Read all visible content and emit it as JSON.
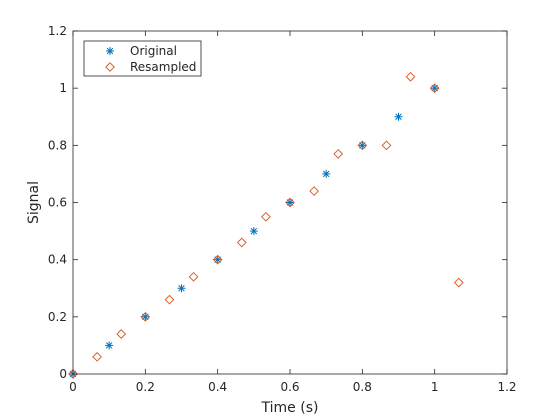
{
  "chart_data": {
    "type": "scatter",
    "xlabel": "Time (s)",
    "ylabel": "Signal",
    "xlim": [
      0,
      1.2
    ],
    "ylim": [
      0,
      1.2
    ],
    "xticks": [
      0,
      0.2,
      0.4,
      0.6,
      0.8,
      1,
      1.2
    ],
    "yticks": [
      0,
      0.2,
      0.4,
      0.6,
      0.8,
      1,
      1.2
    ],
    "xtick_labels": [
      "0",
      "0.2",
      "0.4",
      "0.6",
      "0.8",
      "1",
      "1.2"
    ],
    "ytick_labels": [
      "0",
      "0.2",
      "0.4",
      "0.6",
      "0.8",
      "1",
      "1.2"
    ],
    "grid": false,
    "legend_position": "top-left",
    "series": [
      {
        "name": "Original",
        "marker": "asterisk",
        "color": "#0072BD",
        "x": [
          0,
          0.1,
          0.2,
          0.3,
          0.4,
          0.5,
          0.6,
          0.7,
          0.8,
          0.9,
          1.0
        ],
        "y": [
          0,
          0.1,
          0.2,
          0.3,
          0.4,
          0.5,
          0.6,
          0.7,
          0.8,
          0.9,
          1.0
        ]
      },
      {
        "name": "Resampled",
        "marker": "diamond",
        "color": "#D95319",
        "x": [
          0,
          0.0667,
          0.1333,
          0.2,
          0.2667,
          0.3333,
          0.4,
          0.4667,
          0.5333,
          0.6,
          0.6667,
          0.7333,
          0.8,
          0.8667,
          0.9333,
          1.0,
          1.0667
        ],
        "y": [
          0,
          0.06,
          0.14,
          0.2,
          0.26,
          0.34,
          0.4,
          0.46,
          0.55,
          0.6,
          0.64,
          0.77,
          0.8,
          0.8,
          1.04,
          1.0,
          0.32
        ]
      }
    ]
  }
}
